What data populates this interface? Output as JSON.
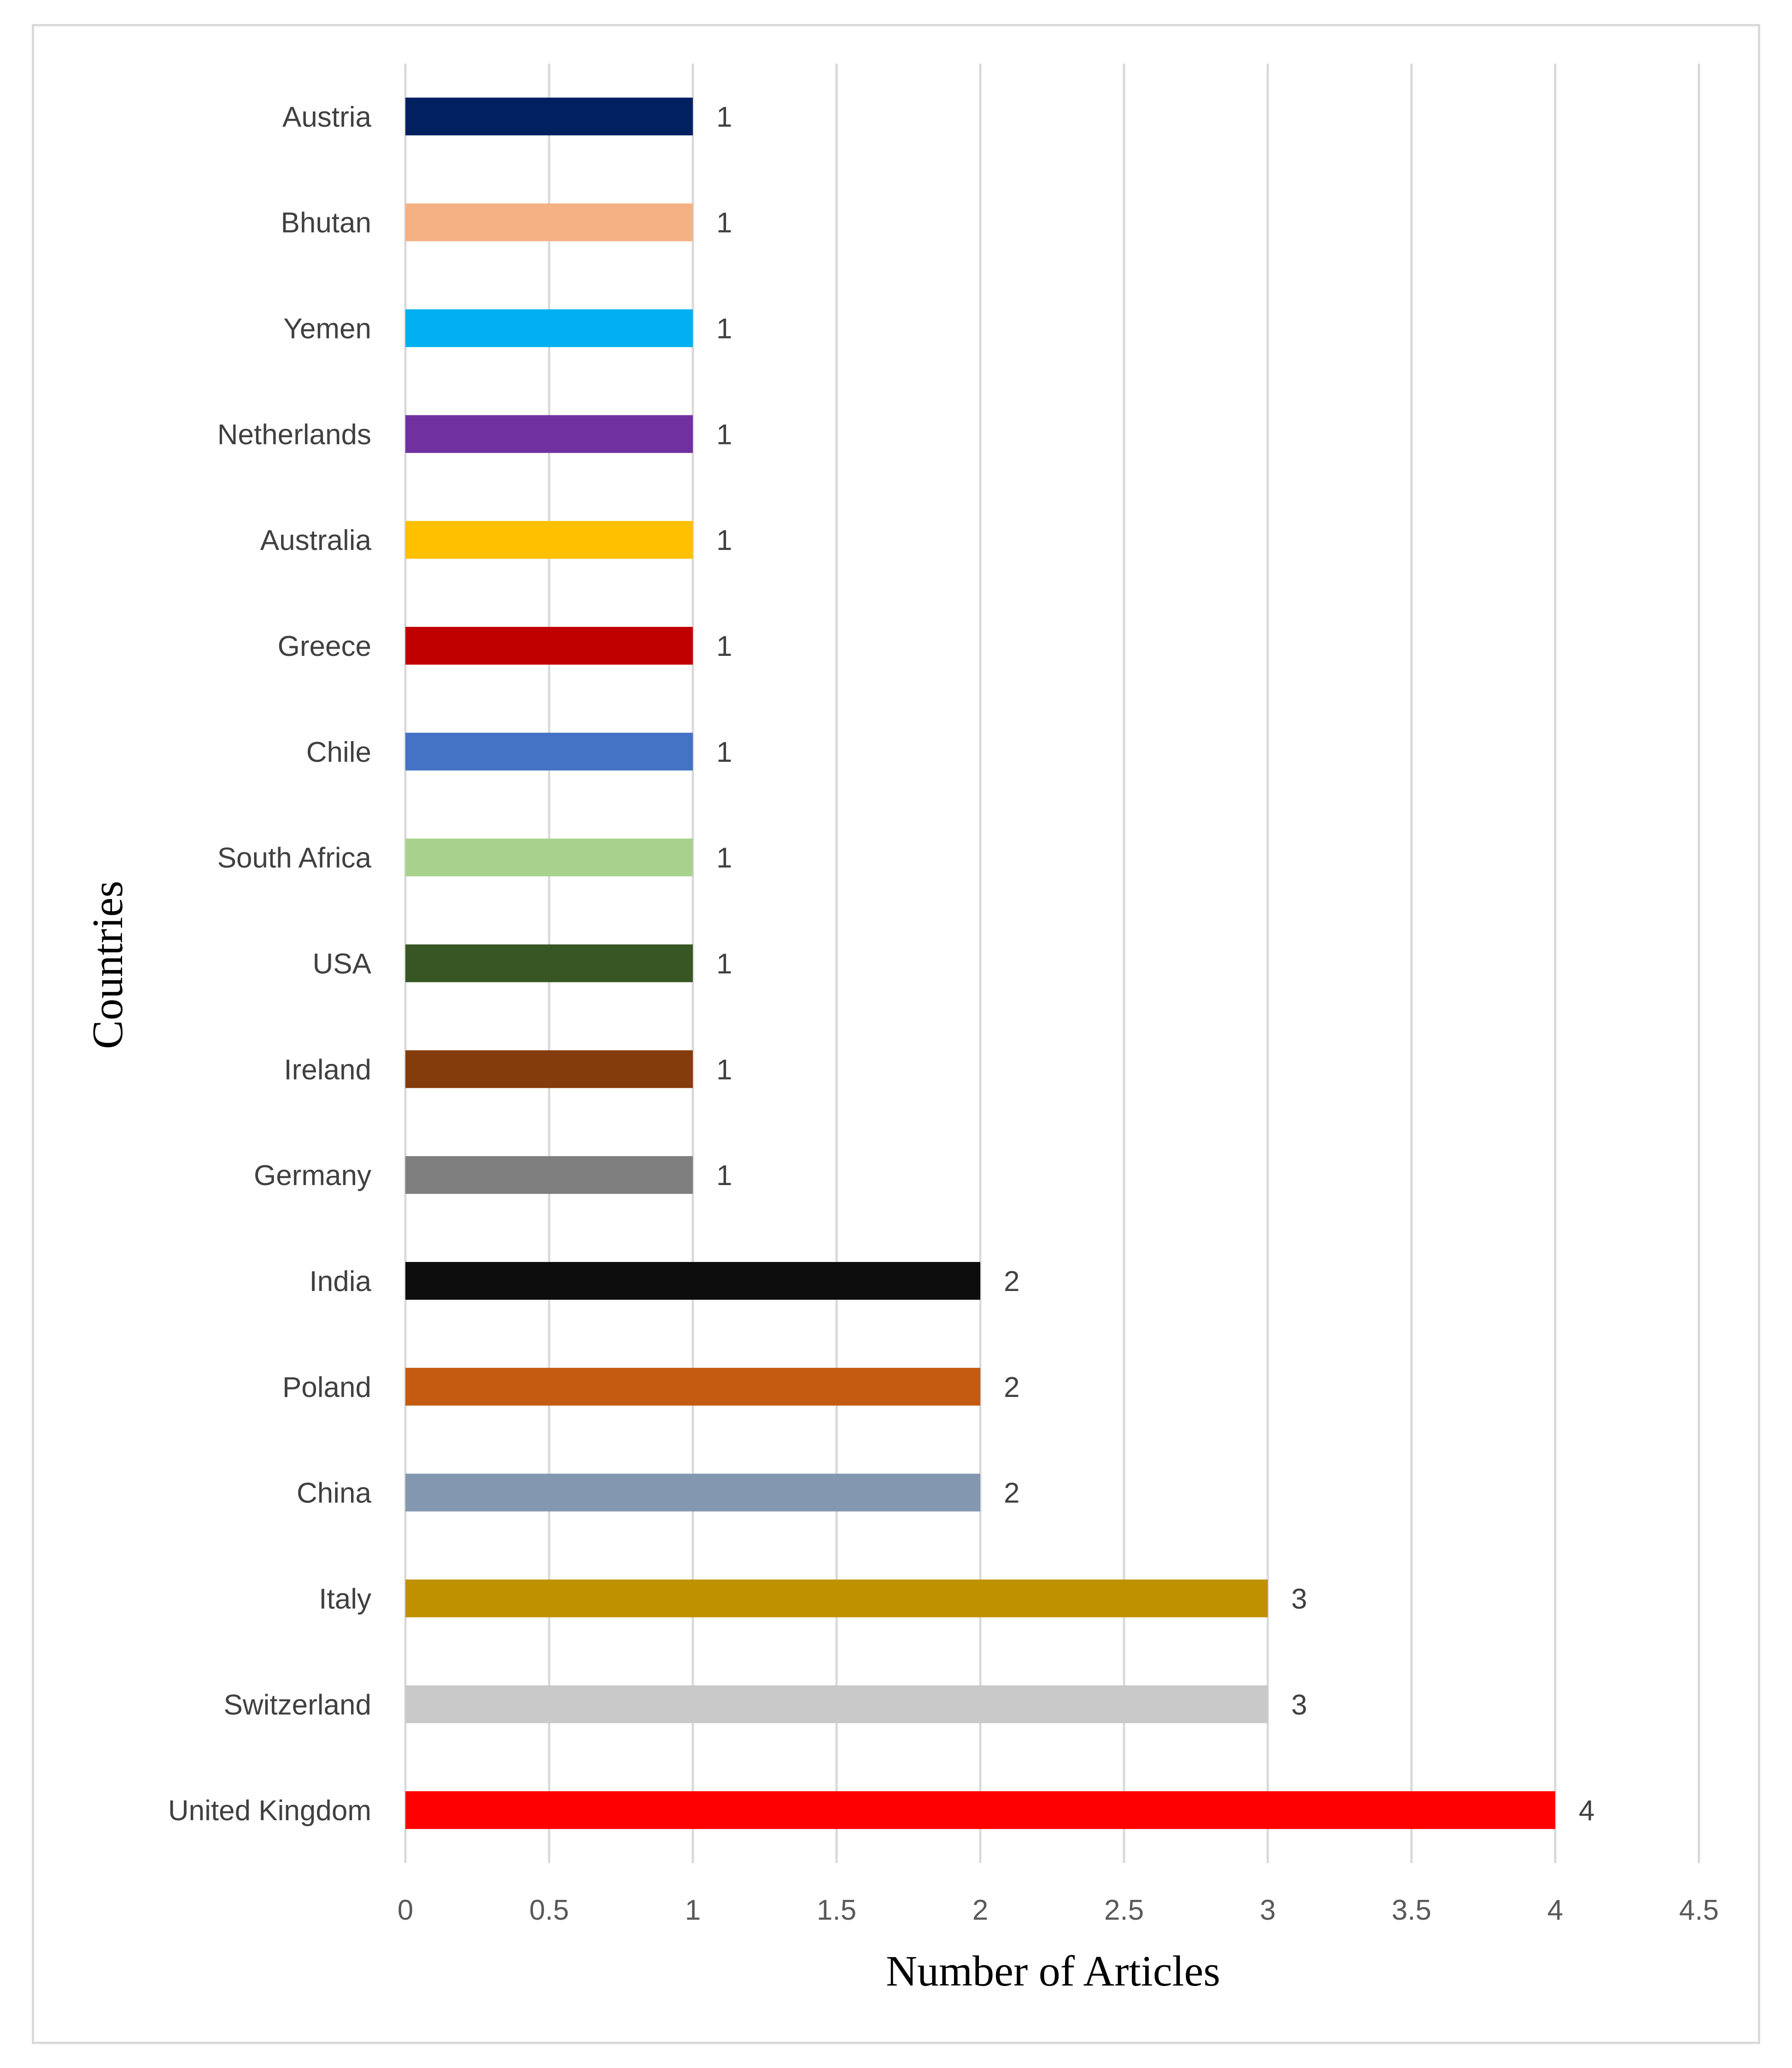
{
  "chart_data": {
    "type": "bar",
    "orientation": "horizontal",
    "title": "",
    "xlabel": "Number of Articles",
    "ylabel": "Countries",
    "xlim": [
      0,
      4.5
    ],
    "x_ticks": [
      "0",
      "0.5",
      "1",
      "1.5",
      "2",
      "2.5",
      "3",
      "3.5",
      "4",
      "4.5"
    ],
    "grid": "vertical",
    "legend": "none",
    "categories": [
      "Austria",
      "Bhutan",
      "Yemen",
      "Netherlands",
      "Australia",
      "Greece",
      "Chile",
      "South Africa",
      "USA",
      "Ireland",
      "Germany",
      "India",
      "Poland",
      "China",
      "Italy",
      "Switzerland",
      "United Kingdom"
    ],
    "values": [
      1,
      1,
      1,
      1,
      1,
      1,
      1,
      1,
      1,
      1,
      1,
      2,
      2,
      2,
      3,
      3,
      4
    ],
    "data_labels": [
      "1",
      "1",
      "1",
      "1",
      "1",
      "1",
      "1",
      "1",
      "1",
      "1",
      "1",
      "2",
      "2",
      "2",
      "3",
      "3",
      "4"
    ],
    "colors": [
      "#002060",
      "#F4B183",
      "#00B0F0",
      "#7030A0",
      "#FFC000",
      "#C00000",
      "#4472C4",
      "#A9D18E",
      "#375623",
      "#843C0C",
      "#7F7F7F",
      "#0D0D0D",
      "#C55A11",
      "#8497B0",
      "#BF9000",
      "#C9C9C9",
      "#FF0000"
    ]
  }
}
